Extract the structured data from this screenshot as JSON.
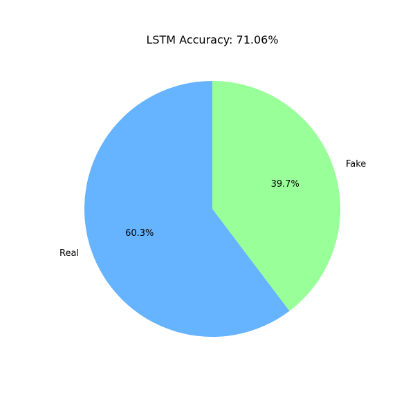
{
  "chart_data": {
    "type": "pie",
    "title": "LSTM Accuracy: 71.06%",
    "slices": [
      {
        "label": "Real",
        "value": 60.3,
        "pct_label": "60.3%",
        "color": "#66b3ff"
      },
      {
        "label": "Fake",
        "value": 39.7,
        "pct_label": "39.7%",
        "color": "#99ff99"
      }
    ],
    "start_angle": "top",
    "direction": "counterclockwise"
  }
}
